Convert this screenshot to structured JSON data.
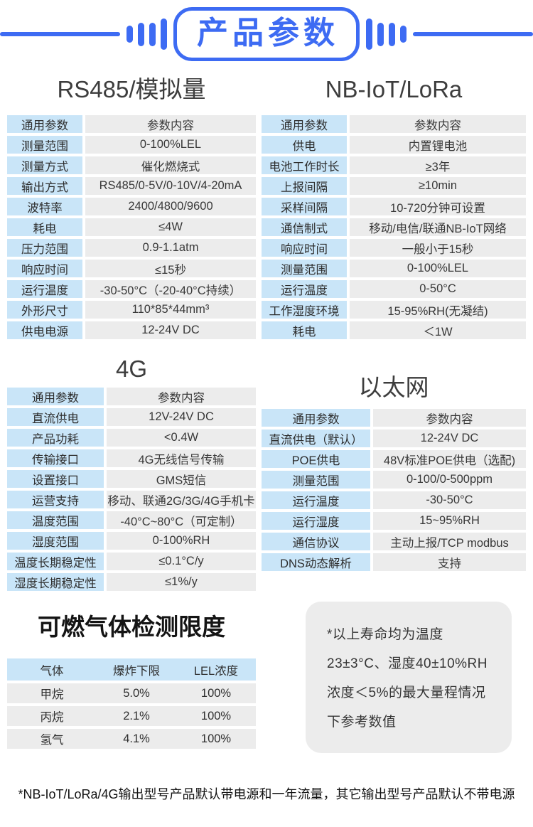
{
  "header": {
    "title": "产品参数"
  },
  "colors": {
    "accent_blue": "#3D6BF3",
    "label_cell_bg": "#C9E5F8",
    "value_cell_bg": "#ECECEC",
    "note_box_bg": "#ECECEC"
  },
  "tables": {
    "rs485": {
      "title": "RS485/模拟量",
      "rows": [
        {
          "label": "通用参数",
          "value": "参数内容"
        },
        {
          "label": "测量范围",
          "value": "0-100%LEL"
        },
        {
          "label": "测量方式",
          "value": "催化燃烧式"
        },
        {
          "label": "输出方式",
          "value": "RS485/0-5V/0-10V/4-20mA"
        },
        {
          "label": "波特率",
          "value": "2400/4800/9600"
        },
        {
          "label": "耗电",
          "value": "≤4W"
        },
        {
          "label": "压力范围",
          "value": "0.9-1.1atm"
        },
        {
          "label": "响应时间",
          "value": "≤15秒"
        },
        {
          "label": "运行温度",
          "value": "-30-50°C（-20-40°C持续）"
        },
        {
          "label": "外形尺寸",
          "value": "110*85*44mm³"
        },
        {
          "label": "供电电源",
          "value": "12-24V DC"
        }
      ]
    },
    "nbiot": {
      "title": "NB-IoT/LoRa",
      "rows": [
        {
          "label": "通用参数",
          "value": "参数内容"
        },
        {
          "label": "供电",
          "value": "内置锂电池"
        },
        {
          "label": "电池工作时长",
          "value": "≥3年"
        },
        {
          "label": "上报间隔",
          "value": "≥10min"
        },
        {
          "label": "采样间隔",
          "value": "10-720分钟可设置"
        },
        {
          "label": "通信制式",
          "value": "移动/电信/联通NB-IoT网络"
        },
        {
          "label": "响应时间",
          "value": "一般小于15秒"
        },
        {
          "label": "测量范围",
          "value": "0-100%LEL"
        },
        {
          "label": "运行温度",
          "value": "0-50°C"
        },
        {
          "label": "工作湿度环境",
          "value": "15-95%RH(无凝结)"
        },
        {
          "label": "耗电",
          "value": "＜1W"
        }
      ]
    },
    "g4": {
      "title": "4G",
      "rows": [
        {
          "label": "通用参数",
          "value": "参数内容"
        },
        {
          "label": "直流供电",
          "value": "12V-24V DC"
        },
        {
          "label": "产品功耗",
          "value": "<0.4W"
        },
        {
          "label": "传输接口",
          "value": "4G无线信号传输"
        },
        {
          "label": "设置接口",
          "value": "GMS短信"
        },
        {
          "label": "运营支持",
          "value": "移动、联通2G/3G/4G手机卡"
        },
        {
          "label": "温度范围",
          "value": "-40°C~80°C（可定制）"
        },
        {
          "label": "湿度范围",
          "value": "0-100%RH"
        },
        {
          "label": "温度长期稳定性",
          "value": "≤0.1°C/y"
        },
        {
          "label": "湿度长期稳定性",
          "value": "≤1%/y"
        }
      ]
    },
    "ethernet": {
      "title": "以太网",
      "rows": [
        {
          "label": "通用参数",
          "value": "参数内容"
        },
        {
          "label": "直流供电（默认）",
          "value": "12-24V DC"
        },
        {
          "label": "POE供电",
          "value": "48V标准POE供电（选配)"
        },
        {
          "label": "测量范围",
          "value": "0-100/0-500ppm"
        },
        {
          "label": "运行温度",
          "value": "-30-50°C"
        },
        {
          "label": "运行湿度",
          "value": "15~95%RH"
        },
        {
          "label": "通信协议",
          "value": "主动上报/TCP modbus"
        },
        {
          "label": "DNS动态解析",
          "value": "支持"
        }
      ]
    },
    "gas": {
      "title": "可燃气体检测限度",
      "headers": [
        "气体",
        "爆炸下限",
        "LEL浓度"
      ],
      "rows": [
        [
          "甲烷",
          "5.0%",
          "100%"
        ],
        [
          "丙烷",
          "2.1%",
          "100%"
        ],
        [
          "氢气",
          "4.1%",
          "100%"
        ]
      ]
    }
  },
  "note": {
    "text": "*以上寿命均为温度23±3°C、湿度40±10%RH浓度＜5%的最大量程情况下参考数值"
  },
  "footer": {
    "text": "*NB-IoT/LoRa/4G输出型号产品默认带电源和一年流量，其它输出型号产品默认不带电源"
  }
}
